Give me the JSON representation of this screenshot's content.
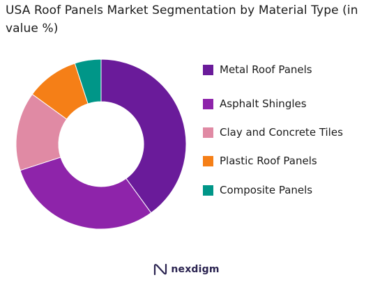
{
  "chart_data": {
    "type": "pie",
    "title": "USA Roof Panels Market Segmentation by Material Type (in value %)",
    "categories": [
      "Metal Roof Panels",
      "Asphalt Shingles",
      "Clay and Concrete Tiles",
      "Plastic Roof Panels",
      "Composite Panels"
    ],
    "values": [
      40,
      30,
      15,
      10,
      5
    ],
    "colors": [
      "#6a1b9a",
      "#8e24aa",
      "#e08aa4",
      "#f57f17",
      "#009688"
    ],
    "donut": true,
    "legend_position": "right"
  },
  "brand": {
    "name": "nexdigm",
    "icon": "nexdigm-logo-icon"
  }
}
